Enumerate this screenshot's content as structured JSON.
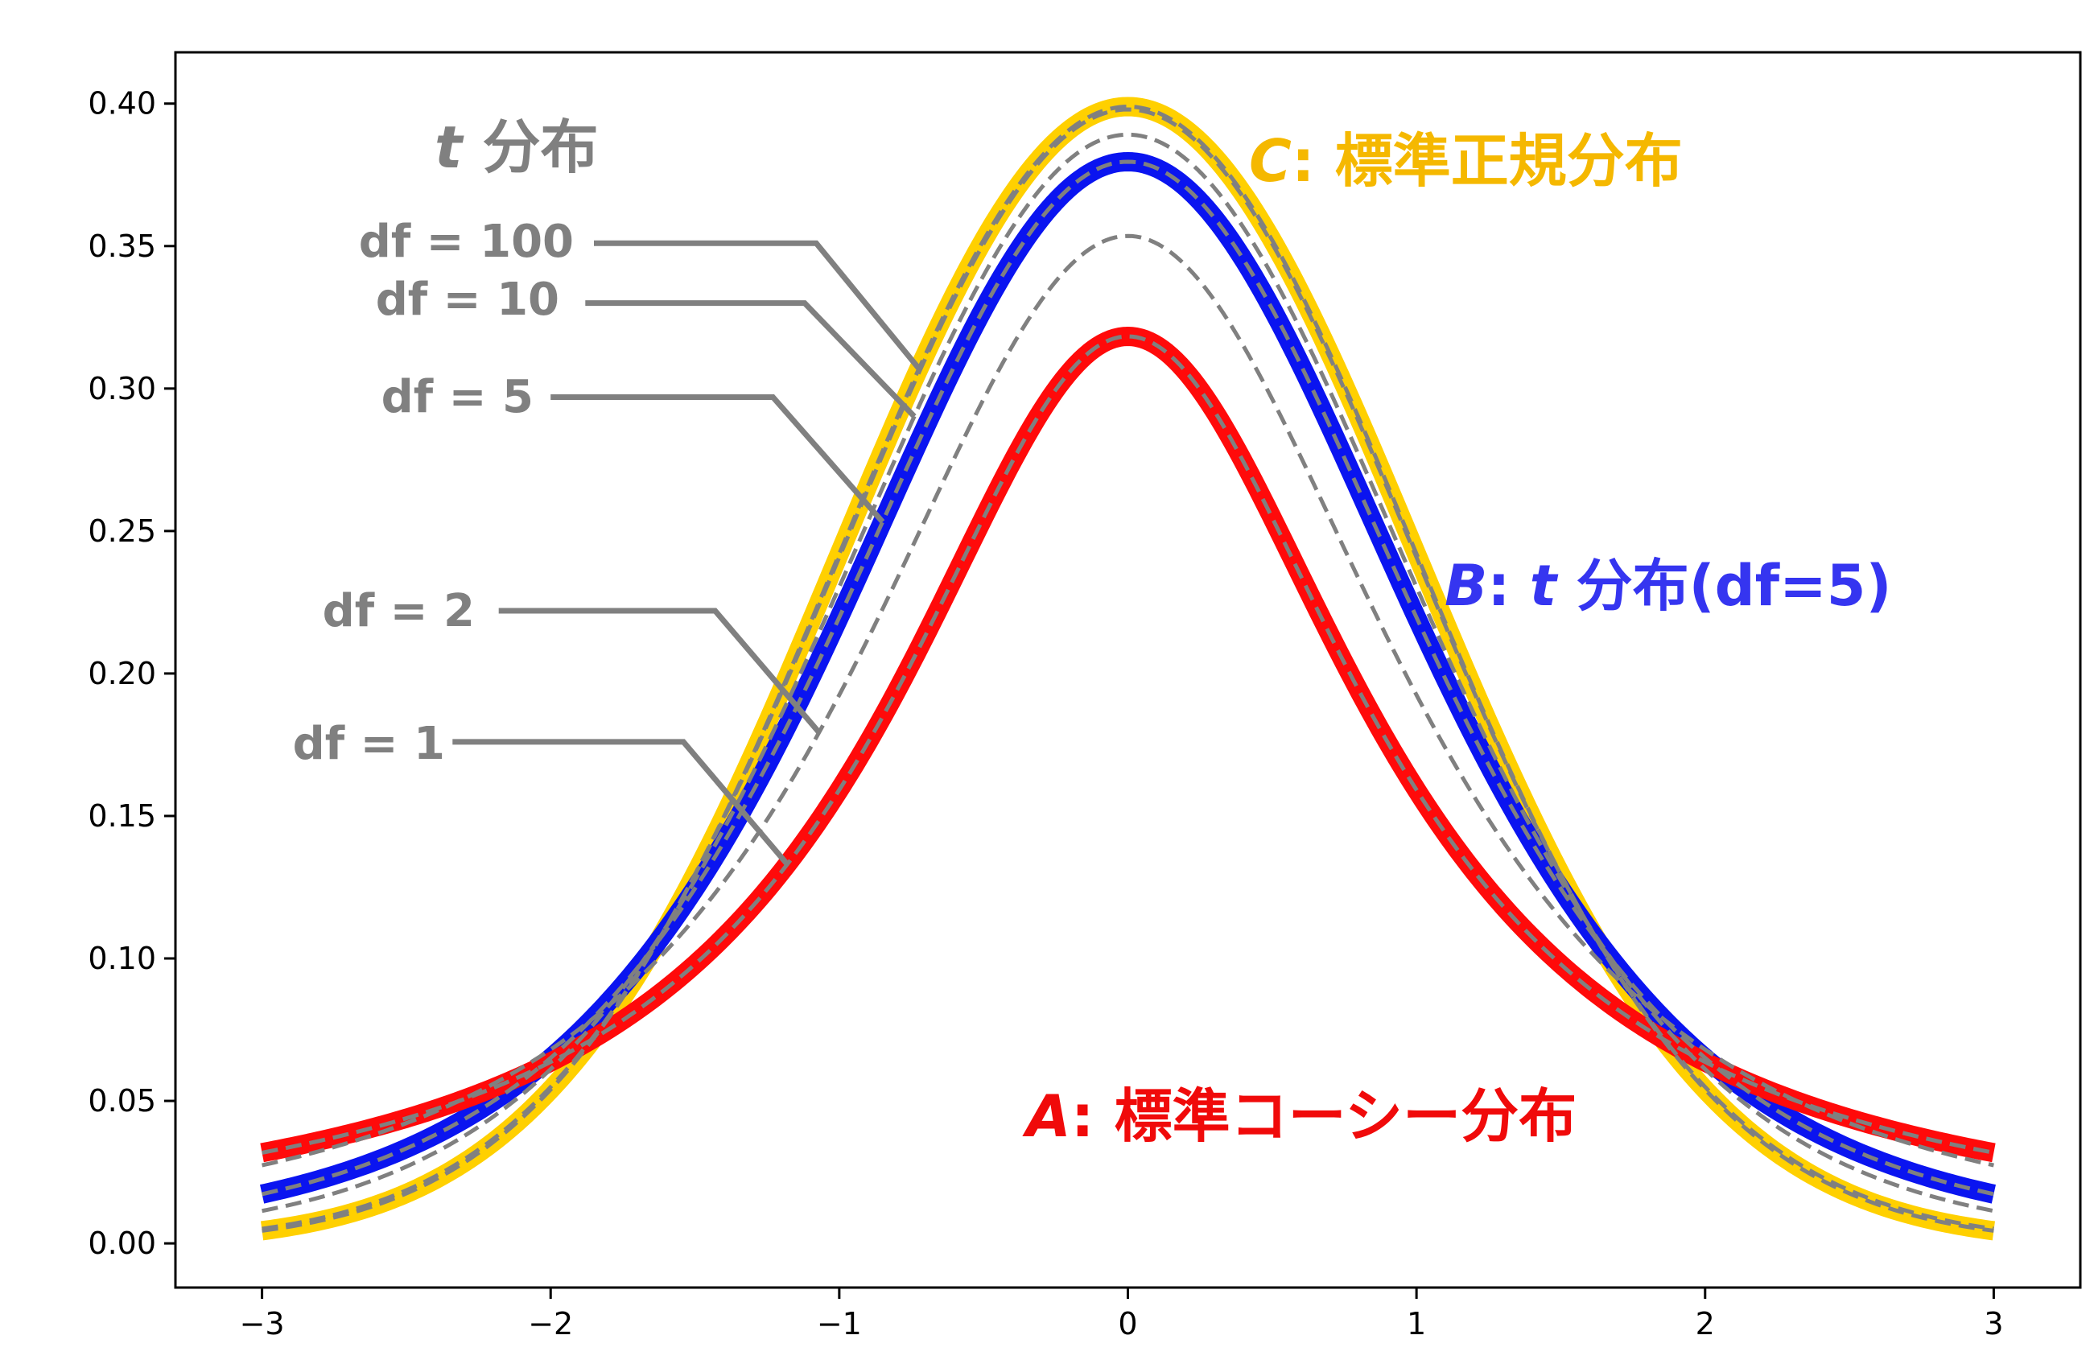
{
  "chart_data": {
    "type": "line",
    "title": "",
    "xlabel": "",
    "ylabel": "",
    "xlim": [
      -3.3,
      3.3
    ],
    "ylim": [
      -0.0155,
      0.418
    ],
    "x_ticks": [
      -3,
      -2,
      -1,
      0,
      1,
      2,
      3
    ],
    "x_tick_labels": [
      "−3",
      "−2",
      "−1",
      "0",
      "1",
      "2",
      "3"
    ],
    "y_ticks": [
      0.0,
      0.05,
      0.1,
      0.15,
      0.2,
      0.25,
      0.3,
      0.35,
      0.4
    ],
    "y_tick_labels": [
      "0.00",
      "0.05",
      "0.10",
      "0.15",
      "0.20",
      "0.25",
      "0.30",
      "0.35",
      "0.40"
    ],
    "grid": false,
    "x_range_plotted": [
      -3,
      3
    ],
    "highlight_series": [
      {
        "id": "C",
        "name": "C: 標準正規分布",
        "distribution": "normal",
        "color": "#FFD000",
        "peak": 0.399
      },
      {
        "id": "B",
        "name": "B: t 分布(df=5)",
        "distribution": "t",
        "df": 5,
        "color": "#0A14F0",
        "peak": 0.38
      },
      {
        "id": "A",
        "name": "A: 標準コーシー分布",
        "distribution": "cauchy",
        "color": "#FF0A0A",
        "peak": 0.318
      }
    ],
    "t_series": [
      {
        "name": "df = 1",
        "df": 1,
        "color": "#808080",
        "peak": 0.318
      },
      {
        "name": "df = 2",
        "df": 2,
        "color": "#808080",
        "peak": 0.354
      },
      {
        "name": "df = 5",
        "df": 5,
        "color": "#808080",
        "peak": 0.38
      },
      {
        "name": "df = 10",
        "df": 10,
        "color": "#808080",
        "peak": 0.389
      },
      {
        "name": "df = 100",
        "df": 100,
        "color": "#808080",
        "peak": 0.398
      }
    ],
    "annotations": {
      "t_title": {
        "italic": "t",
        "text": " 分布",
        "color": "#808080"
      },
      "C": {
        "italic": "C",
        "text": ": 標準正規分布",
        "color": "#F5B800"
      },
      "B": {
        "italic": "B",
        "text": ": ",
        "italic2": "t",
        "text2": " 分布(df=5)",
        "color": "#3535F0"
      },
      "A": {
        "italic": "A",
        "text": ": 標準コーシー分布",
        "color": "#F00A0A"
      }
    }
  }
}
